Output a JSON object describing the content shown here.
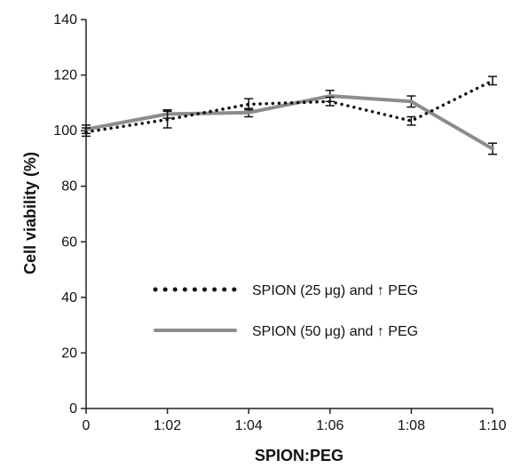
{
  "chart_data": {
    "type": "line",
    "title": "",
    "xlabel": "SPION:PEG",
    "ylabel": "Cell viability (%)",
    "categories": [
      "0",
      "1:02",
      "1:04",
      "1:06",
      "1:08",
      "1:10"
    ],
    "ylim": [
      0,
      140
    ],
    "yticks": [
      "0",
      "20",
      "40",
      "60",
      "80",
      "100",
      "120",
      "140"
    ],
    "grid": false,
    "legend_position": "lower-left",
    "series": [
      {
        "name": "SPION (25 μg) and ↑ PEG",
        "style": "dotted",
        "color": "#111111",
        "values": [
          99.5,
          104,
          109.5,
          110.5,
          103.5,
          118
        ],
        "errors": [
          1.5,
          3,
          2,
          1.5,
          1.5,
          1.5
        ]
      },
      {
        "name": "SPION (50 μg) and ↑ PEG",
        "style": "solid",
        "color": "#8c8c8c",
        "values": [
          100.5,
          106,
          106.5,
          112.5,
          110.5,
          93.5
        ],
        "errors": [
          1.5,
          1.5,
          1.5,
          2,
          2,
          2
        ]
      }
    ]
  }
}
